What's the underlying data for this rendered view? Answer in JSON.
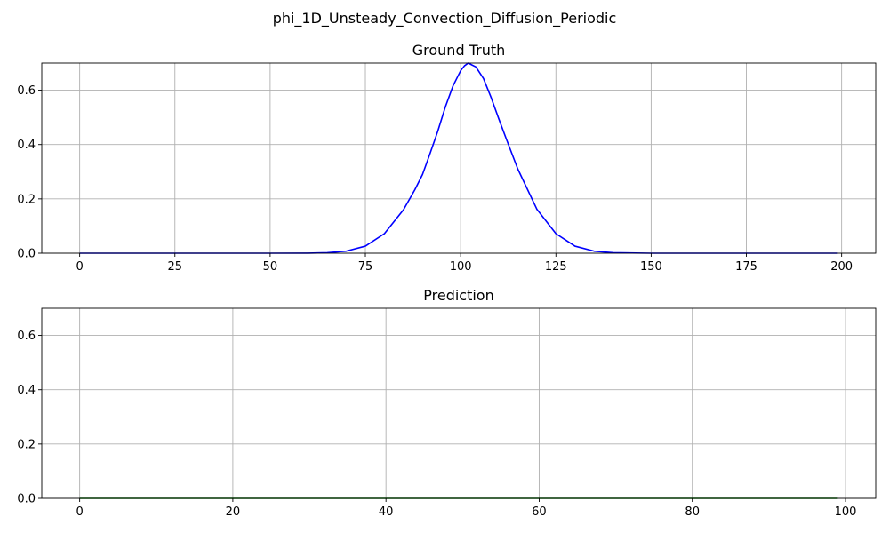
{
  "figure": {
    "title": "phi_1D_Unsteady_Convection_Diffusion_Periodic"
  },
  "chart_data": [
    {
      "type": "line",
      "title": "Ground Truth",
      "xlabel": "",
      "ylabel": "",
      "xlim": [
        -9.95,
        208.95
      ],
      "ylim": [
        0,
        0.7
      ],
      "xticks": [
        0,
        25,
        50,
        75,
        100,
        125,
        150,
        175,
        200
      ],
      "yticks": [
        0.0,
        0.2,
        0.4,
        0.6
      ],
      "xtick_labels": [
        "0",
        "25",
        "50",
        "75",
        "100",
        "125",
        "150",
        "175",
        "200"
      ],
      "ytick_labels": [
        "0.0",
        "0.2",
        "0.4",
        "0.6"
      ],
      "grid": true,
      "legend": "none",
      "series": [
        {
          "color": "#0000ff",
          "x": [
            0,
            50,
            60,
            65,
            70,
            75,
            80,
            85,
            88,
            90,
            92,
            94,
            96,
            98,
            100,
            101,
            102,
            104,
            106,
            108,
            110,
            112,
            115,
            120,
            125,
            130,
            135,
            140,
            150,
            199
          ],
          "y": [
            0.0,
            0.0,
            0.0003,
            0.0018,
            0.0077,
            0.026,
            0.072,
            0.16,
            0.234,
            0.29,
            0.368,
            0.449,
            0.539,
            0.616,
            0.672,
            0.69,
            0.7,
            0.686,
            0.643,
            0.573,
            0.495,
            0.42,
            0.31,
            0.162,
            0.072,
            0.026,
            0.0077,
            0.0018,
            0.0,
            0.0
          ]
        }
      ]
    },
    {
      "type": "line",
      "title": "Prediction",
      "xlabel": "",
      "ylabel": "",
      "xlim": [
        -4.95,
        103.95
      ],
      "ylim": [
        0,
        0.7
      ],
      "xticks": [
        0,
        20,
        40,
        60,
        80,
        100
      ],
      "yticks": [
        0.0,
        0.2,
        0.4,
        0.6
      ],
      "xtick_labels": [
        "0",
        "20",
        "40",
        "60",
        "80",
        "100"
      ],
      "ytick_labels": [
        "0.0",
        "0.2",
        "0.4",
        "0.6"
      ],
      "grid": true,
      "legend": "none",
      "series": [
        {
          "color": "#008000",
          "x": [
            0,
            99
          ],
          "y": [
            0.0,
            0.0
          ]
        }
      ]
    }
  ]
}
